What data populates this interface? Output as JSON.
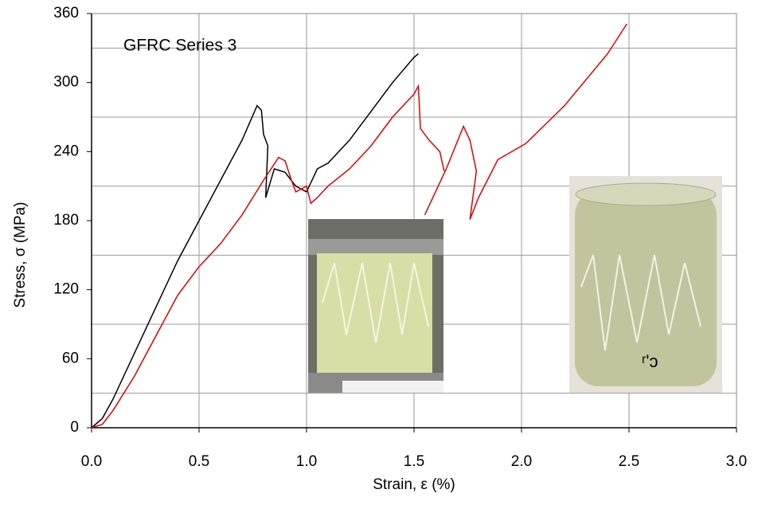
{
  "chart_data": {
    "type": "line",
    "annotation": "GFRC Series 3",
    "xlabel": "Strain, ε (%)",
    "ylabel": "Stress, σ (MPa)",
    "xlim": [
      0,
      3
    ],
    "ylim": [
      0,
      360
    ],
    "xticks": [
      {
        "value": 0,
        "label": "0.0"
      },
      0.5,
      {
        "value": 1,
        "label": "1.0"
      },
      1.5,
      {
        "value": 2,
        "label": "2.0"
      },
      2.5,
      {
        "value": 3,
        "label": "3.0"
      }
    ],
    "yticks": [
      0,
      60,
      120,
      180,
      240,
      300,
      360
    ],
    "ygrid": [
      30,
      90,
      150,
      210,
      270,
      330
    ],
    "xgrid": true,
    "series": [
      {
        "color": "#000000",
        "x": [
          0,
          0.05,
          0.1,
          0.2,
          0.3,
          0.4,
          0.5,
          0.6,
          0.7,
          0.77,
          0.79,
          0.8,
          0.82,
          0.81,
          0.85,
          0.9,
          0.95,
          1.0,
          1.05,
          1.1,
          1.2,
          1.3,
          1.4,
          1.5,
          1.52
        ],
        "values": [
          0,
          8,
          25,
          65,
          105,
          145,
          180,
          215,
          250,
          280,
          276,
          255,
          245,
          200,
          225,
          222,
          210,
          205,
          225,
          230,
          250,
          275,
          300,
          322,
          325
        ]
      },
      {
        "color": "#e00000",
        "x": [
          0,
          0.05,
          0.1,
          0.2,
          0.3,
          0.4,
          0.5,
          0.6,
          0.7,
          0.8,
          0.87,
          0.9,
          0.93,
          0.95,
          1.0,
          1.02,
          1.05,
          1.1,
          1.2,
          1.3,
          1.4,
          1.5,
          1.52,
          1.53,
          1.57,
          1.62,
          1.64,
          null,
          1.55,
          1.65,
          1.73,
          1.76,
          1.79,
          1.76,
          1.8,
          1.89,
          2.02,
          2.2,
          2.4,
          2.49
        ],
        "values": [
          0,
          3,
          15,
          45,
          80,
          115,
          140,
          160,
          185,
          215,
          235,
          232,
          215,
          205,
          210,
          195,
          200,
          210,
          225,
          245,
          270,
          290,
          297,
          260,
          250,
          240,
          223,
          null,
          185,
          225,
          262,
          250,
          223,
          181,
          200,
          233,
          247,
          280,
          325,
          351
        ]
      }
    ]
  }
}
